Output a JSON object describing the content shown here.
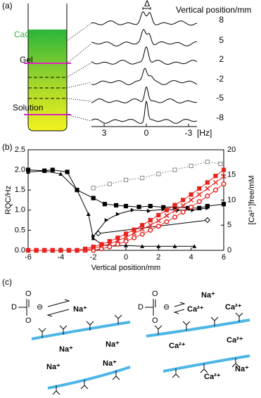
{
  "panel_a": {
    "label": "(a)",
    "cacl2": "CaCl₂",
    "gel": "Gel",
    "solution": "Solution",
    "delta": "Δ",
    "position_title": "Vertical position/mm",
    "positions": [
      "8",
      "5",
      "2",
      "-2",
      "-5",
      "-8"
    ],
    "axis_labels": [
      "3",
      "0",
      "-3",
      "[Hz]"
    ]
  },
  "chart_data": {
    "type": "line",
    "panel_label": "(b)",
    "xlabel": "Vertical position/mm",
    "ylabel": "RQC/Hz",
    "y2label": "[Ca²⁺]free/mM",
    "xlim": [
      -6,
      6
    ],
    "xticks": [
      -6,
      -4,
      -2,
      0,
      2,
      4,
      6
    ],
    "ylim": [
      0,
      2.5
    ],
    "yticks": [
      {
        "value": 0,
        "label": "0.0"
      },
      0.5,
      {
        "value": 1,
        "label": "1.0"
      },
      1.5,
      {
        "value": 2,
        "label": "2.0"
      },
      2.5
    ],
    "y2lim": [
      0,
      20
    ],
    "y2ticks": [
      0,
      5,
      10,
      15,
      20
    ],
    "series": [
      {
        "color": "#000000",
        "marker": "square-filled",
        "x": [
          -6,
          -5,
          -4.5,
          -3.6,
          -3,
          -2,
          -1.3,
          -0.6,
          0,
          0.8,
          1.5,
          2.3,
          3,
          3.8,
          4.5,
          5,
          6
        ],
        "values": [
          2.0,
          1.98,
          2.0,
          1.95,
          1.5,
          1.3,
          1.15,
          1.12,
          1.1,
          1.08,
          1.1,
          1.07,
          1.08,
          1.05,
          1.05,
          1.1,
          1.15
        ]
      },
      {
        "color": "#000000",
        "marker": "triangle-filled",
        "x": [
          -6,
          -5,
          -4,
          -3,
          -2.3,
          -2,
          -1.5,
          -1,
          0,
          1,
          2,
          3,
          4.2
        ],
        "values": [
          1.95,
          1.97,
          1.9,
          1.5,
          0.9,
          0.3,
          0.15,
          0.1,
          0.12,
          0.1,
          0.1,
          0.1,
          0.1
        ]
      },
      {
        "color": "#000000",
        "marker": "triangle-right",
        "x": [
          -2,
          -1.2,
          -0.5,
          0.4,
          1.4,
          2.3,
          3.2,
          4.1,
          5
        ],
        "values": [
          0.35,
          0.75,
          0.9,
          1.0,
          0.98,
          1.02,
          1.0,
          1.0,
          1.05
        ]
      },
      {
        "color": "#000000",
        "marker": "diamond-open",
        "x": [
          -1.7,
          5
        ],
        "values": [
          0.42,
          0.75
        ]
      },
      {
        "color": "#888888",
        "marker": "square-open",
        "dash": true,
        "x": [
          -2,
          -1,
          0,
          1,
          2,
          3,
          4,
          5,
          5.8
        ],
        "values": [
          1.55,
          1.65,
          1.75,
          1.8,
          1.9,
          2.0,
          2.1,
          2.2,
          2.15
        ]
      },
      {
        "color": "#e8231f",
        "marker": "circle-open",
        "axis": "y2",
        "x": [
          -6,
          -5.5,
          -5,
          -4.5,
          -4,
          -3.5,
          -3,
          -2.5,
          -2,
          -1.5,
          -1,
          -0.5,
          0,
          0.5,
          1,
          1.5,
          2,
          2.5,
          3,
          3.5,
          4,
          4.5,
          5,
          5.5,
          6
        ],
        "values": [
          0,
          0,
          0,
          0,
          0,
          0,
          0,
          0,
          0,
          0.3,
          0.7,
          1.2,
          1.8,
          2.5,
          3.2,
          4,
          4.8,
          5.7,
          6.6,
          7.6,
          8.6,
          9.7,
          10.8,
          12,
          13.2
        ]
      },
      {
        "color": "#e8231f",
        "marker": "square-filled",
        "axis": "y2",
        "x": [
          -6,
          -5.5,
          -5,
          -4.5,
          -4,
          -3.5,
          -3,
          -2.5,
          -2,
          -1.5,
          -1,
          -0.5,
          0,
          0.5,
          1,
          1.5,
          2,
          2.5,
          3,
          3.5,
          4,
          4.5,
          5,
          5.5,
          6
        ],
        "values": [
          0,
          0,
          0,
          0,
          0,
          0,
          0,
          0.3,
          0.7,
          1.2,
          1.8,
          2.5,
          3.3,
          4.1,
          5,
          6,
          7,
          8,
          9,
          10,
          11.1,
          12.3,
          13.5,
          14.8,
          16
        ]
      },
      {
        "color": "#e8231f",
        "marker": "cross",
        "axis": "y2",
        "x": [
          -6,
          -5.5,
          -5,
          -4.5,
          -4,
          -3.5,
          -3,
          -2.5,
          -2,
          -1.5,
          -1,
          -0.5,
          0,
          0.5,
          1,
          1.5,
          2,
          2.5,
          3,
          3.5,
          4,
          4.5,
          5,
          5.5,
          6
        ],
        "values": [
          0,
          0,
          0,
          0,
          0,
          0,
          0,
          0,
          0.4,
          0.8,
          1.3,
          1.9,
          2.6,
          3.4,
          4.2,
          5,
          5.9,
          6.9,
          7.9,
          8.9,
          10,
          11.1,
          12.3,
          13.5,
          14.7
        ]
      }
    ]
  },
  "panel_c": {
    "label": "(c)",
    "left": {
      "D": "D",
      "O1": "O",
      "O2": "O",
      "charge": "⊖",
      "ions": [
        "Na⁺",
        "Na⁺",
        "Na⁺",
        "Na⁺",
        "Na⁺"
      ]
    },
    "right": {
      "D": "D",
      "O1": "O",
      "O2": "O",
      "charge": "⊖",
      "ions": [
        "Na⁺",
        "Ca²⁺",
        "Ca²⁺",
        "Ca²⁺",
        "Ca²⁺",
        "Ca²⁺",
        "Na⁺"
      ]
    }
  }
}
